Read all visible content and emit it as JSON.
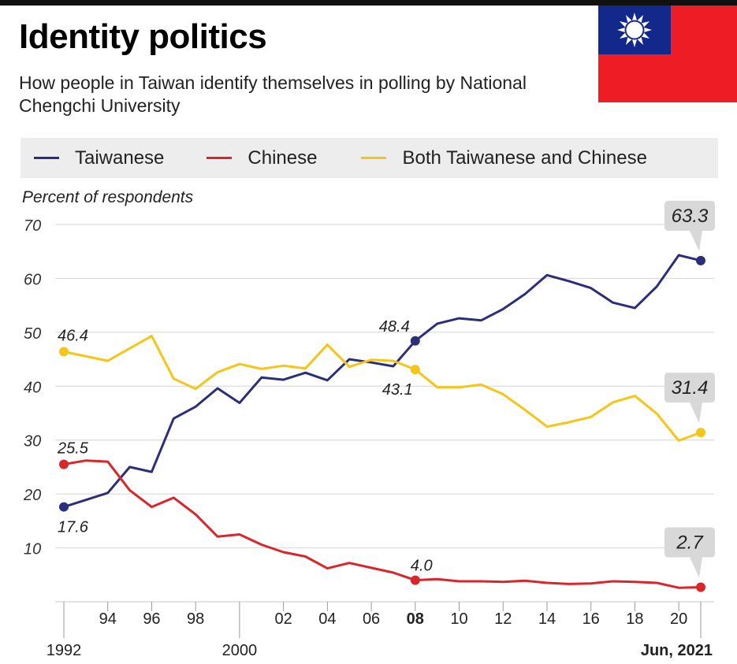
{
  "header": {
    "title": "Identity politics",
    "subtitle": "How people in Taiwan identify themselves in polling by National Chengchi University"
  },
  "flag": {
    "name": "flag-of-taiwan",
    "colors": {
      "blue": "#13288b",
      "red": "#ee1c25",
      "white": "#ffffff"
    }
  },
  "legend": [
    {
      "label": "Taiwanese",
      "color": "#2b2f7a"
    },
    {
      "label": "Chinese",
      "color": "#d9262b"
    },
    {
      "label": "Both Taiwanese and Chinese",
      "color": "#f5c518"
    }
  ],
  "chart_data": {
    "type": "line",
    "ylabel": "Percent of respondents",
    "ylim": [
      0,
      70
    ],
    "yticks": [
      10,
      20,
      30,
      40,
      50,
      60,
      70
    ],
    "xlim": [
      1992,
      2021.5
    ],
    "x_ticks": [
      {
        "x": 1992,
        "label": "1992",
        "row": 2,
        "bold": false
      },
      {
        "x": 1994,
        "label": "94",
        "row": 1,
        "bold": false
      },
      {
        "x": 1996,
        "label": "96",
        "row": 1,
        "bold": false
      },
      {
        "x": 1998,
        "label": "98",
        "row": 1,
        "bold": false
      },
      {
        "x": 2000,
        "label": "2000",
        "row": 2,
        "bold": false
      },
      {
        "x": 2002,
        "label": "02",
        "row": 1,
        "bold": false
      },
      {
        "x": 2004,
        "label": "04",
        "row": 1,
        "bold": false
      },
      {
        "x": 2006,
        "label": "06",
        "row": 1,
        "bold": false
      },
      {
        "x": 2008,
        "label": "08",
        "row": 1,
        "bold": true
      },
      {
        "x": 2010,
        "label": "10",
        "row": 1,
        "bold": false
      },
      {
        "x": 2012,
        "label": "12",
        "row": 1,
        "bold": false
      },
      {
        "x": 2014,
        "label": "14",
        "row": 1,
        "bold": false
      },
      {
        "x": 2016,
        "label": "16",
        "row": 1,
        "bold": false
      },
      {
        "x": 2018,
        "label": "18",
        "row": 1,
        "bold": false
      },
      {
        "x": 2020,
        "label": "20",
        "row": 1,
        "bold": false
      },
      {
        "x": 2021,
        "label": "Jun, 2021",
        "row": 2,
        "bold": true
      }
    ],
    "series": [
      {
        "name": "Taiwanese",
        "color": "#2b2f7a",
        "points": [
          [
            1992,
            17.6
          ],
          [
            1994,
            20.2
          ],
          [
            1995,
            25.0
          ],
          [
            1996,
            24.1
          ],
          [
            1997,
            34.0
          ],
          [
            1998,
            36.2
          ],
          [
            1999,
            39.6
          ],
          [
            2000,
            36.9
          ],
          [
            2001,
            41.6
          ],
          [
            2002,
            41.2
          ],
          [
            2003,
            42.5
          ],
          [
            2004,
            41.1
          ],
          [
            2005,
            45.0
          ],
          [
            2006,
            44.4
          ],
          [
            2007,
            43.7
          ],
          [
            2008,
            48.4
          ],
          [
            2009,
            51.6
          ],
          [
            2010,
            52.6
          ],
          [
            2011,
            52.2
          ],
          [
            2012,
            54.3
          ],
          [
            2013,
            57.1
          ],
          [
            2014,
            60.6
          ],
          [
            2015,
            59.5
          ],
          [
            2016,
            58.2
          ],
          [
            2017,
            55.5
          ],
          [
            2018,
            54.5
          ],
          [
            2019,
            58.5
          ],
          [
            2020,
            64.3
          ],
          [
            2021,
            63.3
          ]
        ]
      },
      {
        "name": "Chinese",
        "color": "#d9262b",
        "points": [
          [
            1992,
            25.5
          ],
          [
            1993,
            26.2
          ],
          [
            1994,
            26.0
          ],
          [
            1995,
            20.7
          ],
          [
            1996,
            17.6
          ],
          [
            1997,
            19.3
          ],
          [
            1998,
            16.2
          ],
          [
            1999,
            12.1
          ],
          [
            2000,
            12.5
          ],
          [
            2001,
            10.6
          ],
          [
            2002,
            9.2
          ],
          [
            2003,
            8.4
          ],
          [
            2004,
            6.2
          ],
          [
            2005,
            7.2
          ],
          [
            2006,
            6.3
          ],
          [
            2007,
            5.4
          ],
          [
            2008,
            4.0
          ],
          [
            2009,
            4.2
          ],
          [
            2010,
            3.8
          ],
          [
            2011,
            3.8
          ],
          [
            2012,
            3.7
          ],
          [
            2013,
            3.9
          ],
          [
            2014,
            3.5
          ],
          [
            2015,
            3.3
          ],
          [
            2016,
            3.4
          ],
          [
            2017,
            3.8
          ],
          [
            2018,
            3.7
          ],
          [
            2019,
            3.5
          ],
          [
            2020,
            2.6
          ],
          [
            2021,
            2.7
          ]
        ]
      },
      {
        "name": "Both Taiwanese and Chinese",
        "color": "#f5c518",
        "points": [
          [
            1992,
            46.4
          ],
          [
            1994,
            44.7
          ],
          [
            1996,
            49.3
          ],
          [
            1997,
            41.4
          ],
          [
            1998,
            39.5
          ],
          [
            1999,
            42.6
          ],
          [
            2000,
            44.1
          ],
          [
            2001,
            43.2
          ],
          [
            2002,
            43.8
          ],
          [
            2003,
            43.3
          ],
          [
            2004,
            47.7
          ],
          [
            2005,
            43.6
          ],
          [
            2006,
            44.9
          ],
          [
            2007,
            44.7
          ],
          [
            2008,
            43.1
          ],
          [
            2009,
            39.8
          ],
          [
            2010,
            39.8
          ],
          [
            2011,
            40.3
          ],
          [
            2012,
            38.5
          ],
          [
            2013,
            35.6
          ],
          [
            2014,
            32.5
          ],
          [
            2015,
            33.3
          ],
          [
            2016,
            34.3
          ],
          [
            2017,
            37.0
          ],
          [
            2018,
            38.2
          ],
          [
            2019,
            34.9
          ],
          [
            2020,
            29.9
          ],
          [
            2021,
            31.4
          ]
        ]
      }
    ],
    "annotations": [
      {
        "text": "46.4",
        "x": 1992,
        "y": 46.4,
        "series": 2,
        "style": "plain",
        "pos": "above"
      },
      {
        "text": "25.5",
        "x": 1992,
        "y": 25.5,
        "series": 1,
        "style": "plain",
        "pos": "above"
      },
      {
        "text": "17.6",
        "x": 1992,
        "y": 17.6,
        "series": 0,
        "style": "plain",
        "pos": "below"
      },
      {
        "text": "48.4",
        "x": 2008,
        "y": 48.4,
        "series": 0,
        "style": "plain",
        "pos": "above-left"
      },
      {
        "text": "43.1",
        "x": 2008,
        "y": 43.1,
        "series": 2,
        "style": "plain",
        "pos": "below-left"
      },
      {
        "text": "4.0",
        "x": 2008,
        "y": 4.0,
        "series": 1,
        "style": "plain",
        "pos": "above"
      },
      {
        "text": "63.3",
        "x": 2021,
        "y": 63.3,
        "series": 0,
        "style": "callout",
        "pos": "above"
      },
      {
        "text": "31.4",
        "x": 2021,
        "y": 31.4,
        "series": 2,
        "style": "callout",
        "pos": "above"
      },
      {
        "text": "2.7",
        "x": 2021,
        "y": 2.7,
        "series": 1,
        "style": "callout",
        "pos": "above"
      }
    ]
  }
}
